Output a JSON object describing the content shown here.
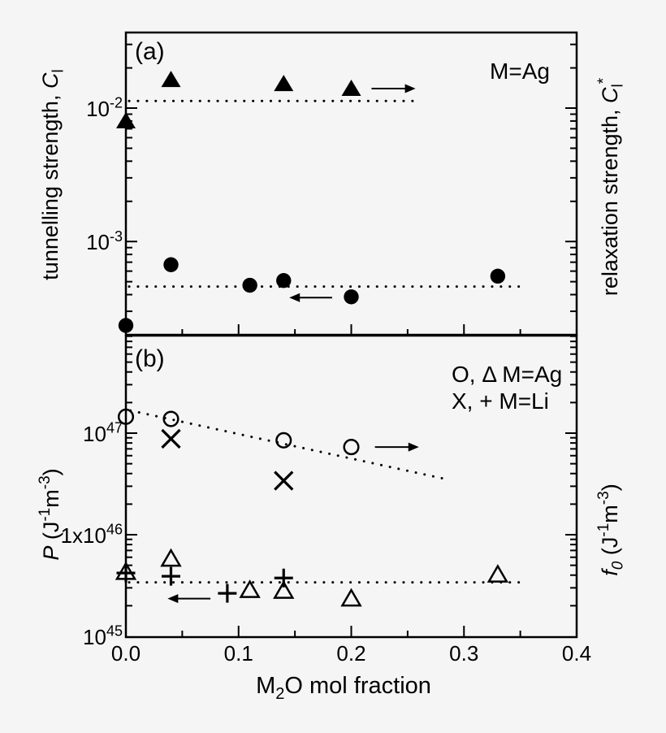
{
  "figure": {
    "background_color": "#f5f5f5",
    "line_color": "#000000",
    "x_axis": {
      "label_rich": [
        {
          "t": "M"
        },
        {
          "t": "2",
          "sub": true
        },
        {
          "t": "O mol fraction"
        }
      ],
      "min": 0.0,
      "max": 0.4,
      "major_ticks": [
        0.0,
        0.1,
        0.2,
        0.3,
        0.4
      ],
      "tick_labels": [
        "0.0",
        "0.1",
        "0.2",
        "0.3",
        "0.4"
      ],
      "minor_step": 0.05
    }
  },
  "chart_data": [
    {
      "id": "a",
      "type": "scatter",
      "panel_label": "(a)",
      "annotation": "M=Ag",
      "y_scale": "log",
      "y_min": 0.0002,
      "y_max": 0.037,
      "grid": false,
      "y_left_label_rich": [
        {
          "t": "tunnelling strength, "
        },
        {
          "t": "C",
          "i": true
        },
        {
          "t": "l",
          "sub": true
        }
      ],
      "y_right_label_rich": [
        {
          "t": "relaxation strength, "
        },
        {
          "t": "C",
          "i": true
        },
        {
          "t": "l",
          "sub": true
        },
        {
          "t": "*",
          "sup": true
        }
      ],
      "y_major_tick_labels": [
        {
          "value": 0.01,
          "rich": [
            {
              "t": "10"
            },
            {
              "t": "-2",
              "sup": true
            }
          ]
        },
        {
          "value": 0.001,
          "rich": [
            {
              "t": "10"
            },
            {
              "t": "-3",
              "sup": true
            }
          ]
        }
      ],
      "series": [
        {
          "name": "relaxation-strength-Ag-filled-triangles",
          "marker": "triangle-filled",
          "reads_axis": "right",
          "x": [
            0.0,
            0.04,
            0.14,
            0.2
          ],
          "y": [
            0.008,
            0.0163,
            0.0152,
            0.014
          ]
        },
        {
          "name": "tunnelling-strength-Ag-filled-circles",
          "marker": "circle-filled",
          "reads_axis": "left",
          "x": [
            0.0,
            0.04,
            0.11,
            0.14,
            0.2,
            0.33
          ],
          "y": [
            0.000235,
            0.00067,
            0.00047,
            0.00051,
            0.000385,
            0.00055
          ]
        }
      ],
      "guides": [
        {
          "type": "dotted-hline",
          "y": 0.0113,
          "x1": 0.0,
          "x2": 0.2545
        },
        {
          "type": "dotted-hline",
          "y": 0.00046,
          "x1": 0.0,
          "x2": 0.353
        }
      ],
      "arrows": [
        {
          "dir": "right",
          "x1": 0.218,
          "x2": 0.257,
          "y": 0.014
        },
        {
          "dir": "left",
          "x1": 0.145,
          "x2": 0.183,
          "y": 0.00038
        }
      ]
    },
    {
      "id": "b",
      "type": "scatter",
      "panel_label": "(b)",
      "legend_lines": [
        "O, Δ  M=Ag",
        "X, +  M=Li"
      ],
      "y_scale": "log",
      "y_min": 9.8e+44,
      "y_max": 9.1e+47,
      "grid": false,
      "y_left_label_rich": [
        {
          "t": "P",
          "i": true
        },
        {
          "t": " (J"
        },
        {
          "t": "-1",
          "sup": true
        },
        {
          "t": "m"
        },
        {
          "t": "-3",
          "sup": true
        },
        {
          "t": ")"
        }
      ],
      "y_right_label_rich": [
        {
          "t": "f",
          "i": true
        },
        {
          "t": "0",
          "sub": true,
          "i": true
        },
        {
          "t": " (J"
        },
        {
          "t": "-1",
          "sup": true
        },
        {
          "t": "m"
        },
        {
          "t": "-3",
          "sup": true
        },
        {
          "t": ")"
        }
      ],
      "y_major_tick_labels": [
        {
          "value": 1e+47,
          "rich": [
            {
              "t": "10"
            },
            {
              "t": "47",
              "sup": true
            }
          ]
        },
        {
          "value": 1e+46,
          "rich": [
            {
              "t": "1x10"
            },
            {
              "t": "46",
              "sup": true
            }
          ]
        },
        {
          "value": 1e+45,
          "rich": [
            {
              "t": "10"
            },
            {
              "t": "45",
              "sup": true
            }
          ]
        }
      ],
      "series": [
        {
          "name": "P-Ag-open-circles",
          "marker": "circle-open",
          "reads_axis": "left",
          "x": [
            0.0,
            0.04,
            0.14,
            0.2
          ],
          "y": [
            1.45e+47,
            1.38e+47,
            8.5e+46,
            7.3e+46
          ]
        },
        {
          "name": "P-Li-x-marks",
          "marker": "x",
          "reads_axis": "left",
          "x": [
            0.04,
            0.14
          ],
          "y": [
            8.8e+46,
            3.4e+46
          ]
        },
        {
          "name": "f0-Ag-open-triangles",
          "marker": "triangle-open",
          "reads_axis": "right",
          "x": [
            0.0,
            0.04,
            0.11,
            0.14,
            0.2,
            0.33
          ],
          "y": [
            4.3e+45,
            5.8e+45,
            2.85e+45,
            2.8e+45,
            2.35e+45,
            4.05e+45
          ]
        },
        {
          "name": "f0-Li-plus-marks",
          "marker": "plus",
          "reads_axis": "right",
          "x": [
            0.0,
            0.04,
            0.09,
            0.14
          ],
          "y": [
            4.2e+45,
            3.9e+45,
            2.65e+45,
            3.75e+45
          ]
        }
      ],
      "guides": [
        {
          "type": "dotted-line",
          "x1": 0.004,
          "y1": 1.67e+47,
          "x2": 0.288,
          "y2": 3.45e+46
        },
        {
          "type": "dotted-hline",
          "y": 3.4e+45,
          "x1": 0.0,
          "x2": 0.356
        }
      ],
      "arrows": [
        {
          "dir": "right",
          "x1": 0.221,
          "x2": 0.26,
          "y": 7.3e+46
        },
        {
          "dir": "left",
          "x1": 0.037,
          "x2": 0.075,
          "y": 2.35e+45
        }
      ]
    }
  ]
}
